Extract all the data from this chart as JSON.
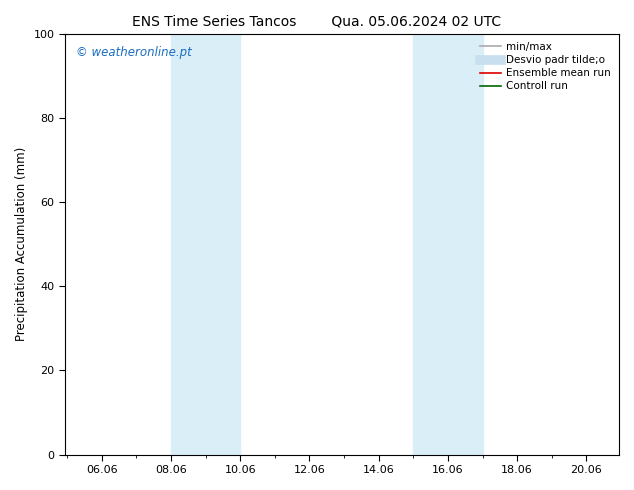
{
  "title_left": "ENS Time Series Tancos",
  "title_right": "Qua. 05.06.2024 02 UTC",
  "ylabel": "Precipitation Accumulation (mm)",
  "ylim": [
    0,
    100
  ],
  "yticks": [
    0,
    20,
    40,
    60,
    80,
    100
  ],
  "xlim": [
    5.0,
    21.0
  ],
  "xtick_positions": [
    6.06,
    8.06,
    10.06,
    12.06,
    14.06,
    16.06,
    18.06,
    20.06
  ],
  "xtick_labels": [
    "06.06",
    "08.06",
    "10.06",
    "12.06",
    "14.06",
    "16.06",
    "18.06",
    "20.06"
  ],
  "shaded_regions": [
    {
      "xmin": 8.06,
      "xmax": 10.06,
      "color": "#daeef8"
    },
    {
      "xmin": 15.06,
      "xmax": 17.06,
      "color": "#daeef8"
    }
  ],
  "watermark_text": "© weatheronline.pt",
  "watermark_color": "#1a6dc0",
  "legend_entries": [
    {
      "label": "min/max",
      "color": "#aaaaaa",
      "linewidth": 1.2,
      "linestyle": "-",
      "type": "line"
    },
    {
      "label": "Desvio padr tilde;o",
      "color": "#c8dff0",
      "linewidth": 7,
      "linestyle": "-",
      "type": "line"
    },
    {
      "label": "Ensemble mean run",
      "color": "#dd0000",
      "linewidth": 1.2,
      "linestyle": "-",
      "type": "line"
    },
    {
      "label": "Controll run",
      "color": "#006600",
      "linewidth": 1.2,
      "linestyle": "-",
      "type": "line"
    }
  ],
  "background_color": "#ffffff",
  "title_fontsize": 10,
  "ylabel_fontsize": 8.5,
  "tick_fontsize": 8,
  "legend_fontsize": 7.5,
  "watermark_fontsize": 8.5
}
